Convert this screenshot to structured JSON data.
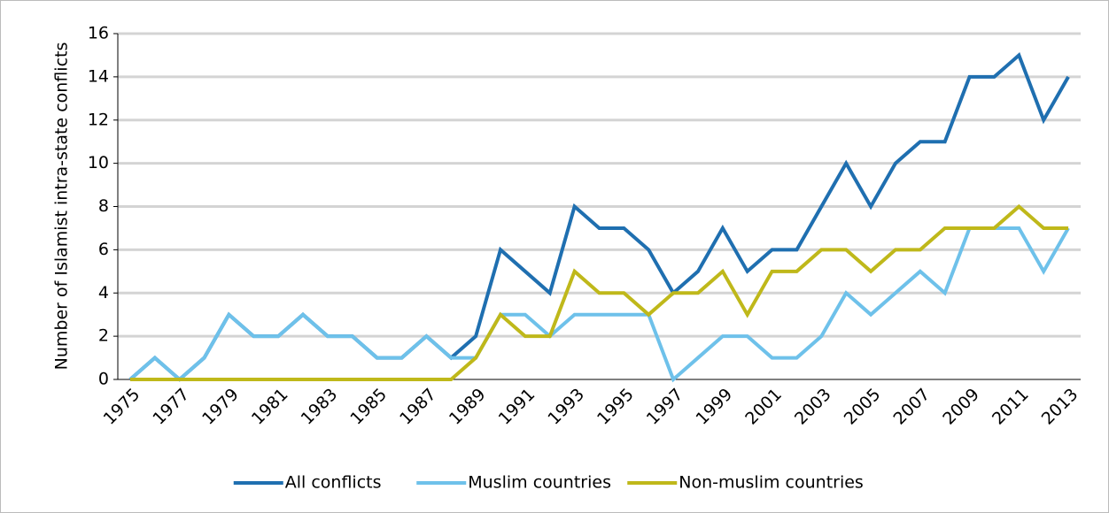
{
  "chart_data": {
    "type": "line",
    "y_label": "Number of Islamist intra-state conflicts",
    "categories": [
      "1975",
      null,
      "1977",
      null,
      "1979",
      null,
      "1981",
      null,
      "1983",
      null,
      "1985",
      null,
      "1987",
      null,
      "1989",
      null,
      "1991",
      null,
      "1993",
      null,
      "1995",
      null,
      "1997",
      null,
      "1999",
      null,
      "2001",
      null,
      "2003",
      null,
      "2005",
      null,
      "2007",
      null,
      "2009",
      null,
      "2011",
      null,
      "2013"
    ],
    "series": [
      {
        "name": "All conflicts",
        "color": "#1f6fb0",
        "values": [
          0,
          1,
          0,
          1,
          3,
          2,
          2,
          3,
          2,
          2,
          1,
          1,
          2,
          1,
          2,
          6,
          5,
          4,
          8,
          7,
          7,
          6,
          4,
          5,
          7,
          5,
          6,
          6,
          8,
          10,
          8,
          10,
          11,
          11,
          14,
          14,
          15,
          12,
          14
        ]
      },
      {
        "name": "Muslim countries",
        "color": "#6ec1ea",
        "values": [
          0,
          1,
          0,
          1,
          3,
          2,
          2,
          3,
          2,
          2,
          1,
          1,
          2,
          1,
          1,
          3,
          3,
          2,
          3,
          3,
          3,
          3,
          0,
          1,
          2,
          2,
          1,
          1,
          2,
          4,
          3,
          4,
          5,
          4,
          7,
          7,
          7,
          5,
          7
        ]
      },
      {
        "name": "Non-muslim countries",
        "color": "#bfb81a",
        "values": [
          0,
          0,
          0,
          0,
          0,
          0,
          0,
          0,
          0,
          0,
          0,
          0,
          0,
          0,
          1,
          3,
          2,
          2,
          5,
          4,
          4,
          3,
          4,
          4,
          5,
          3,
          5,
          5,
          6,
          6,
          5,
          6,
          6,
          7,
          7,
          7,
          8,
          7,
          7
        ]
      }
    ],
    "ylim": [
      0,
      16
    ],
    "yticks": [
      0,
      2,
      4,
      6,
      8,
      10,
      12,
      14,
      16
    ],
    "grid": true,
    "legend": "bottom"
  }
}
